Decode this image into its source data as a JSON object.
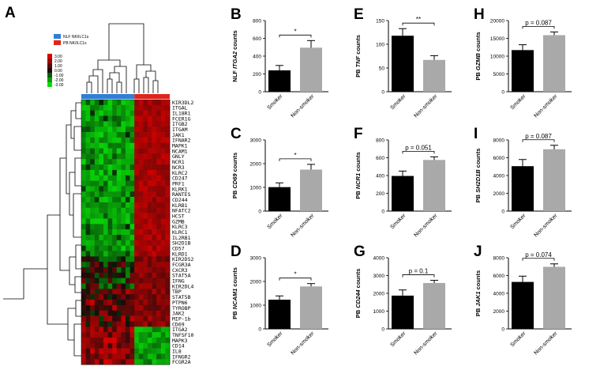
{
  "panel_A": {
    "label": "A",
    "group_legend": [
      {
        "label": "NLF NK/ILC1s",
        "color": "#2f7fd6"
      },
      {
        "label": "PB NK/ILC1s",
        "color": "#e0241c"
      }
    ],
    "color_scale": [
      "3.00",
      "2.00",
      "1.00",
      "0.00",
      "-1.00",
      "-2.00",
      "-3.00"
    ],
    "colors": {
      "high": "#cc1010",
      "mid": "#000000",
      "low": "#10c410"
    },
    "genes": [
      "KIR3DL2",
      "ITGAL",
      "IL18R1",
      "FCER1G",
      "ITGB2",
      "ITGAM",
      "JAK1",
      "IFNAR2",
      "MAPK1",
      "NCAM1",
      "GNLY",
      "NCR1",
      "NCR3",
      "KLRC2",
      "CD247",
      "PRF1",
      "KLRK1",
      "RANTES",
      "CD244",
      "KLRB1",
      "NFATC2",
      "HCST",
      "GZMB",
      "KLRC3",
      "KLRC1",
      "IL2RB1",
      "SH2D1B",
      "CD57",
      "KLRD1",
      "KIR2DS2",
      "FCGR3A",
      "CXCR3",
      "STAT5A",
      "IFNG",
      "KIR2DL4",
      "TBP",
      "STAT5B",
      "PTPN6",
      "TYROBP",
      "JAK2",
      "MIP-1b",
      "CD69",
      "ITGA2",
      "TNFSF10",
      "MAPK3",
      "CD14",
      "IL8",
      "IFNGR2",
      "FCGR2A"
    ]
  },
  "chart_data": [
    {
      "panel": "B",
      "type": "bar",
      "categories": [
        "Smoker",
        "Non-smoker"
      ],
      "values": [
        240,
        495
      ],
      "errors": [
        55,
        80
      ],
      "ylabel_prefix": "NLF ",
      "ylabel_gene": "ITGA2",
      "ylabel_suffix": " counts",
      "ylim": [
        0,
        800
      ],
      "yticks": [
        "0",
        "200",
        "400",
        "600",
        "800"
      ],
      "sig": "*",
      "colors": [
        "#000000",
        "#a9a9a9"
      ]
    },
    {
      "panel": "C",
      "type": "bar",
      "categories": [
        "Smoker",
        "Non-smoker"
      ],
      "values": [
        1010,
        1750
      ],
      "errors": [
        180,
        220
      ],
      "ylabel_prefix": "PB ",
      "ylabel_gene": "CD69",
      "ylabel_suffix": " counts",
      "ylim": [
        0,
        3000
      ],
      "yticks": [
        "0",
        "1000",
        "2000",
        "3000"
      ],
      "sig": "*",
      "colors": [
        "#000000",
        "#a9a9a9"
      ]
    },
    {
      "panel": "D",
      "type": "bar",
      "categories": [
        "Smoker",
        "Non-smoker"
      ],
      "values": [
        1230,
        1790
      ],
      "errors": [
        160,
        120
      ],
      "ylabel_prefix": "PB ",
      "ylabel_gene": "NCAM1",
      "ylabel_suffix": " counts",
      "ylim": [
        0,
        3000
      ],
      "yticks": [
        "0",
        "1000",
        "2000",
        "3000"
      ],
      "sig": "*",
      "colors": [
        "#000000",
        "#a9a9a9"
      ]
    },
    {
      "panel": "E",
      "type": "bar",
      "categories": [
        "Smoker",
        "Non-smoker"
      ],
      "values": [
        118,
        67
      ],
      "errors": [
        15,
        9
      ],
      "ylabel_prefix": "PB ",
      "ylabel_gene": "TNF",
      "ylabel_suffix": " counts",
      "ylim": [
        0,
        150
      ],
      "yticks": [
        "0",
        "50",
        "100",
        "150"
      ],
      "sig": "**",
      "colors": [
        "#000000",
        "#a9a9a9"
      ]
    },
    {
      "panel": "F",
      "type": "bar",
      "categories": [
        "Smoker",
        "Non-smoker"
      ],
      "values": [
        395,
        575
      ],
      "errors": [
        55,
        35
      ],
      "ylabel_prefix": "PB ",
      "ylabel_gene": "NCR1",
      "ylabel_suffix": " counts",
      "ylim": [
        0,
        800
      ],
      "yticks": [
        "0",
        "200",
        "400",
        "600",
        "800"
      ],
      "sig": "p = 0.051",
      "colors": [
        "#000000",
        "#a9a9a9"
      ]
    },
    {
      "panel": "G",
      "type": "bar",
      "categories": [
        "Smoker",
        "Non-smoker"
      ],
      "values": [
        1870,
        2580
      ],
      "errors": [
        320,
        150
      ],
      "ylabel_prefix": "PB ",
      "ylabel_gene": "CD244",
      "ylabel_suffix": " counts",
      "ylim": [
        0,
        4000
      ],
      "yticks": [
        "0",
        "1000",
        "2000",
        "3000",
        "4000"
      ],
      "sig": "p = 0.1",
      "colors": [
        "#000000",
        "#a9a9a9"
      ]
    },
    {
      "panel": "H",
      "type": "bar",
      "categories": [
        "Smoker",
        "Non-smoker"
      ],
      "values": [
        11700,
        15900
      ],
      "errors": [
        1500,
        900
      ],
      "ylabel_prefix": "PB ",
      "ylabel_gene": "GZMB",
      "ylabel_suffix": " counts",
      "ylim": [
        0,
        20000
      ],
      "yticks": [
        "0",
        "5000",
        "10000",
        "15000",
        "20000"
      ],
      "sig": "p = 0.087",
      "colors": [
        "#000000",
        "#a9a9a9"
      ]
    },
    {
      "panel": "I",
      "type": "bar",
      "categories": [
        "Smoker",
        "Non-smoker"
      ],
      "values": [
        5050,
        6950
      ],
      "errors": [
        750,
        450
      ],
      "ylabel_prefix": "PB ",
      "ylabel_gene": "SH2D1B",
      "ylabel_suffix": " counts",
      "ylim": [
        0,
        8000
      ],
      "yticks": [
        "0",
        "2000",
        "4000",
        "6000",
        "8000"
      ],
      "sig": "p = 0.087",
      "colors": [
        "#000000",
        "#a9a9a9"
      ]
    },
    {
      "panel": "J",
      "type": "bar",
      "categories": [
        "Smoker",
        "Non-smoker"
      ],
      "values": [
        5280,
        6980
      ],
      "errors": [
        650,
        330
      ],
      "ylabel_prefix": "PB ",
      "ylabel_gene": "JAK1",
      "ylabel_suffix": " counts",
      "ylim": [
        0,
        8000
      ],
      "yticks": [
        "0",
        "2000",
        "4000",
        "6000",
        "8000"
      ],
      "sig": "p = 0.074",
      "colors": [
        "#000000",
        "#a9a9a9"
      ]
    }
  ]
}
